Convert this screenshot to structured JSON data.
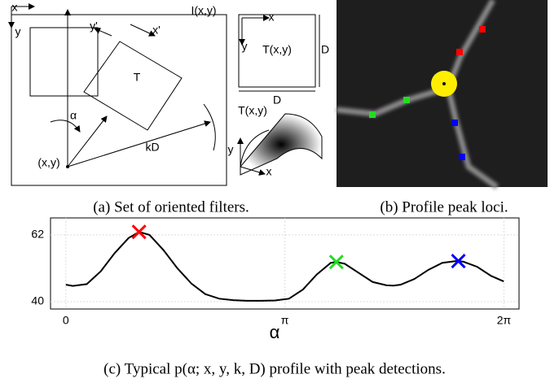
{
  "panel_a": {
    "labels": [
      "x",
      "y",
      "I(x,y)",
      "y'",
      "x'",
      "T",
      "α",
      "(x,y)",
      "kD",
      "x",
      "y",
      "T(x,y)",
      "D",
      "D",
      "T(x,y)",
      "y",
      "x"
    ],
    "caption": "(a) Set of oriented filters."
  },
  "panel_b": {
    "caption": "(b) Profile peak loci."
  },
  "chart_data": {
    "type": "line",
    "x": [
      0,
      0.1,
      0.3,
      0.5,
      0.7,
      0.9,
      1.05,
      1.2,
      1.4,
      1.6,
      1.8,
      2.0,
      2.2,
      2.4,
      2.6,
      2.8,
      3.0,
      3.2,
      3.4,
      3.6,
      3.8,
      3.88,
      4.0,
      4.2,
      4.4,
      4.6,
      4.7,
      4.8,
      5.0,
      5.2,
      5.4,
      5.6,
      5.7,
      5.9,
      6.1,
      6.28
    ],
    "series": [
      {
        "color": "#000000",
        "values": [
          45.6,
          45.2,
          45.8,
          50,
          56,
          61,
          63,
          62,
          57,
          51,
          46,
          42.5,
          41,
          40.5,
          40.3,
          40.3,
          40.4,
          41,
          44,
          49,
          52.8,
          53.1,
          52.5,
          49.5,
          46.5,
          45.4,
          45.3,
          45.6,
          47.5,
          50.5,
          52.8,
          53.4,
          53.2,
          51.5,
          48.5,
          46.7
        ]
      }
    ],
    "peaks": {
      "x": [
        1.05,
        3.88,
        5.63
      ],
      "values": [
        63,
        53.1,
        53.4
      ],
      "colors": [
        "#ff0000",
        "#22dd22",
        "#0000ff"
      ]
    },
    "xlim": [
      -0.22,
      6.5
    ],
    "ylim": [
      37.6,
      67.6
    ],
    "xticks": [
      {
        "value": 0,
        "label": "0"
      },
      {
        "value": 3.14159,
        "label": "π"
      },
      {
        "value": 6.28319,
        "label": "2π"
      }
    ],
    "yticks": [
      40,
      62
    ],
    "xlabel": "α",
    "grid": true,
    "caption": "(c) Typical p(α; x, y, k, D) profile with peak detections."
  }
}
